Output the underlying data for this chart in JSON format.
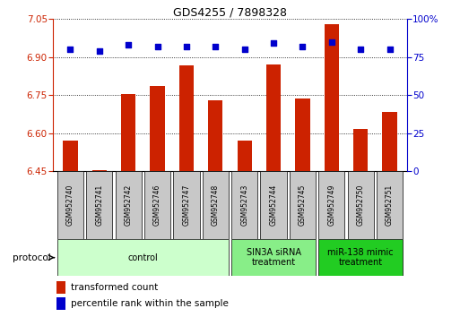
{
  "title": "GDS4255 / 7898328",
  "samples": [
    "GSM952740",
    "GSM952741",
    "GSM952742",
    "GSM952746",
    "GSM952747",
    "GSM952748",
    "GSM952743",
    "GSM952744",
    "GSM952745",
    "GSM952749",
    "GSM952750",
    "GSM952751"
  ],
  "transformed_count": [
    6.572,
    6.455,
    6.755,
    6.785,
    6.868,
    6.728,
    6.572,
    6.872,
    6.738,
    7.03,
    6.615,
    6.682
  ],
  "percentile_rank": [
    80,
    79,
    83,
    82,
    82,
    82,
    80,
    84,
    82,
    85,
    80,
    80
  ],
  "ylim_left": [
    6.45,
    7.05
  ],
  "ylim_right": [
    0,
    100
  ],
  "yticks_left": [
    6.45,
    6.6,
    6.75,
    6.9,
    7.05
  ],
  "yticks_right": [
    0,
    25,
    50,
    75,
    100
  ],
  "bar_color": "#cc2200",
  "dot_color": "#0000cc",
  "protocol_groups": [
    {
      "label": "control",
      "start": 0,
      "end": 5,
      "color": "#ccffcc"
    },
    {
      "label": "SIN3A siRNA\ntreatment",
      "start": 6,
      "end": 8,
      "color": "#88ee88"
    },
    {
      "label": "miR-138 mimic\ntreatment",
      "start": 9,
      "end": 11,
      "color": "#22cc22"
    }
  ],
  "legend_items": [
    {
      "label": "transformed count",
      "color": "#cc2200"
    },
    {
      "label": "percentile rank within the sample",
      "color": "#0000cc"
    }
  ],
  "protocol_label": "protocol",
  "tick_color_left": "#cc2200",
  "tick_color_right": "#0000cc",
  "bar_baseline": 6.45,
  "sample_box_color": "#c8c8c8",
  "figure_width": 5.13,
  "figure_height": 3.54,
  "figure_dpi": 100
}
